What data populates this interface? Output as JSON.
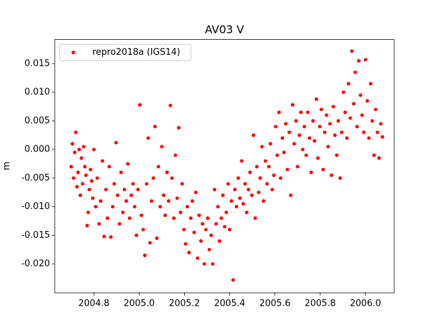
{
  "chart_data": {
    "type": "scatter",
    "title": "AV03 V",
    "y_label": "m",
    "legend": "upper left",
    "xlim": [
      2004.627,
      2006.127
    ],
    "ylim": [
      -0.02505,
      0.01923
    ],
    "xticks": [
      2004.8,
      {
        "value": 2005.0,
        "label": "2005.0"
      },
      2005.2,
      2005.4,
      2005.6,
      2005.8,
      {
        "value": 2006.0,
        "label": "2006.0"
      }
    ],
    "yticks": [
      0.015,
      {
        "value": 0.01,
        "label": "0.010"
      },
      0.005,
      {
        "value": 0,
        "label": "0.000"
      },
      -0.005,
      {
        "value": -0.01,
        "label": "-0.010"
      },
      -0.015,
      {
        "value": -0.02,
        "label": "-0.020"
      }
    ],
    "series": [
      {
        "name": "repro2018a (IGS14)",
        "color": "#ff0000",
        "x": [
          2004.7,
          2004.705,
          2004.71,
          2004.715,
          2004.72,
          2004.725,
          2004.73,
          2004.735,
          2004.74,
          2004.745,
          2004.75,
          2004.755,
          2004.76,
          2004.765,
          2004.77,
          2004.775,
          2004.78,
          2004.785,
          2004.79,
          2004.795,
          2004.8,
          2004.808,
          2004.815,
          2004.823,
          2004.83,
          2004.838,
          2004.845,
          2004.853,
          2004.86,
          2004.868,
          2004.875,
          2004.883,
          2004.89,
          2004.898,
          2004.905,
          2004.913,
          2004.92,
          2004.928,
          2004.935,
          2004.943,
          2004.95,
          2004.958,
          2004.965,
          2004.973,
          2004.98,
          2004.988,
          2004.995,
          2005.003,
          2005.01,
          2005.018,
          2005.025,
          2005.033,
          2005.04,
          2005.048,
          2005.055,
          2005.063,
          2005.07,
          2005.078,
          2005.085,
          2005.093,
          2005.1,
          2005.108,
          2005.115,
          2005.123,
          2005.13,
          2005.138,
          2005.145,
          2005.153,
          2005.16,
          2005.168,
          2005.175,
          2005.183,
          2005.19,
          2005.198,
          2005.205,
          2005.213,
          2005.22,
          2005.228,
          2005.235,
          2005.243,
          2005.25,
          2005.258,
          2005.265,
          2005.273,
          2005.28,
          2005.288,
          2005.295,
          2005.303,
          2005.31,
          2005.318,
          2005.325,
          2005.333,
          2005.34,
          2005.348,
          2005.355,
          2005.363,
          2005.37,
          2005.378,
          2005.385,
          2005.393,
          2005.4,
          2005.408,
          2005.415,
          2005.423,
          2005.43,
          2005.438,
          2005.445,
          2005.453,
          2005.46,
          2005.468,
          2005.475,
          2005.483,
          2005.49,
          2005.498,
          2005.505,
          2005.513,
          2005.52,
          2005.528,
          2005.535,
          2005.543,
          2005.55,
          2005.558,
          2005.565,
          2005.573,
          2005.58,
          2005.588,
          2005.595,
          2005.603,
          2005.61,
          2005.618,
          2005.625,
          2005.633,
          2005.64,
          2005.648,
          2005.655,
          2005.663,
          2005.67,
          2005.678,
          2005.685,
          2005.693,
          2005.7,
          2005.708,
          2005.715,
          2005.723,
          2005.73,
          2005.738,
          2005.745,
          2005.753,
          2005.76,
          2005.768,
          2005.775,
          2005.783,
          2005.79,
          2005.798,
          2005.805,
          2005.813,
          2005.82,
          2005.828,
          2005.835,
          2005.843,
          2005.85,
          2005.858,
          2005.865,
          2005.873,
          2005.88,
          2005.888,
          2005.895,
          2005.903,
          2005.91,
          2005.918,
          2005.925,
          2005.933,
          2005.94,
          2005.948,
          2005.955,
          2005.963,
          2005.97,
          2005.978,
          2005.985,
          2005.993,
          2006.0,
          2006.008,
          2006.015,
          2006.023,
          2006.03,
          2006.038,
          2006.045,
          2006.053,
          2006.06,
          2006.068,
          2006.075
        ],
        "values": [
          -0.003,
          0.001,
          -0.005,
          -0.0005,
          0.003,
          -0.0065,
          -0.004,
          0.0,
          -0.008,
          -0.0015,
          -0.006,
          0.0005,
          -0.003,
          -0.0045,
          -0.0133,
          -0.011,
          -0.007,
          -0.0035,
          -0.0055,
          -0.0085,
          0.0,
          -0.01,
          -0.005,
          -0.013,
          -0.009,
          -0.002,
          -0.0152,
          -0.007,
          -0.012,
          -0.003,
          -0.0153,
          -0.01,
          -0.006,
          0.0012,
          -0.008,
          -0.013,
          -0.004,
          -0.011,
          -0.007,
          -0.009,
          -0.0025,
          -0.012,
          -0.008,
          -0.006,
          -0.01,
          -0.015,
          -0.007,
          0.0078,
          -0.0115,
          -0.014,
          -0.0185,
          -0.006,
          0.002,
          -0.0163,
          -0.009,
          -0.005,
          0.004,
          -0.0155,
          -0.003,
          -0.01,
          0.0005,
          -0.008,
          -0.0115,
          -0.004,
          -0.009,
          0.0077,
          -0.005,
          -0.012,
          -0.001,
          -0.0085,
          0.0038,
          -0.011,
          -0.006,
          -0.014,
          -0.0165,
          -0.01,
          -0.018,
          -0.012,
          -0.009,
          -0.0145,
          -0.0075,
          -0.019,
          -0.0115,
          -0.016,
          -0.013,
          -0.02,
          -0.014,
          -0.012,
          -0.0175,
          -0.015,
          -0.02,
          -0.007,
          -0.013,
          -0.01,
          -0.016,
          -0.012,
          -0.008,
          -0.0135,
          -0.011,
          -0.006,
          -0.014,
          -0.009,
          -0.0228,
          -0.007,
          -0.01,
          -0.005,
          -0.0085,
          -0.002,
          -0.0095,
          -0.006,
          -0.011,
          -0.007,
          -0.004,
          -0.008,
          0.0025,
          -0.012,
          -0.003,
          -0.0075,
          -0.005,
          0.0005,
          -0.009,
          -0.002,
          -0.006,
          -0.003,
          0.001,
          -0.007,
          -0.0045,
          0.004,
          -0.001,
          0.0065,
          -0.005,
          0.002,
          -0.0005,
          0.0045,
          -0.0035,
          0.003,
          -0.008,
          0.0078,
          0.001,
          0.005,
          -0.003,
          0.0025,
          0.0065,
          0.0,
          0.004,
          -0.001,
          0.0065,
          0.002,
          -0.004,
          0.005,
          0.0015,
          0.0088,
          -0.0015,
          0.004,
          0.007,
          -0.0035,
          0.003,
          0.006,
          0.0005,
          0.0045,
          -0.0045,
          0.0075,
          0.0025,
          -0.001,
          0.005,
          -0.005,
          0.003,
          0.01,
          0.0065,
          0.002,
          0.0115,
          0.0055,
          0.0172,
          0.008,
          0.0135,
          0.004,
          0.0155,
          0.0095,
          0.006,
          0.003,
          0.0157,
          0.0085,
          0.002,
          0.0115,
          0.005,
          -0.001,
          0.007,
          0.003,
          -0.0015,
          0.0045,
          0.0022
        ]
      }
    ]
  }
}
